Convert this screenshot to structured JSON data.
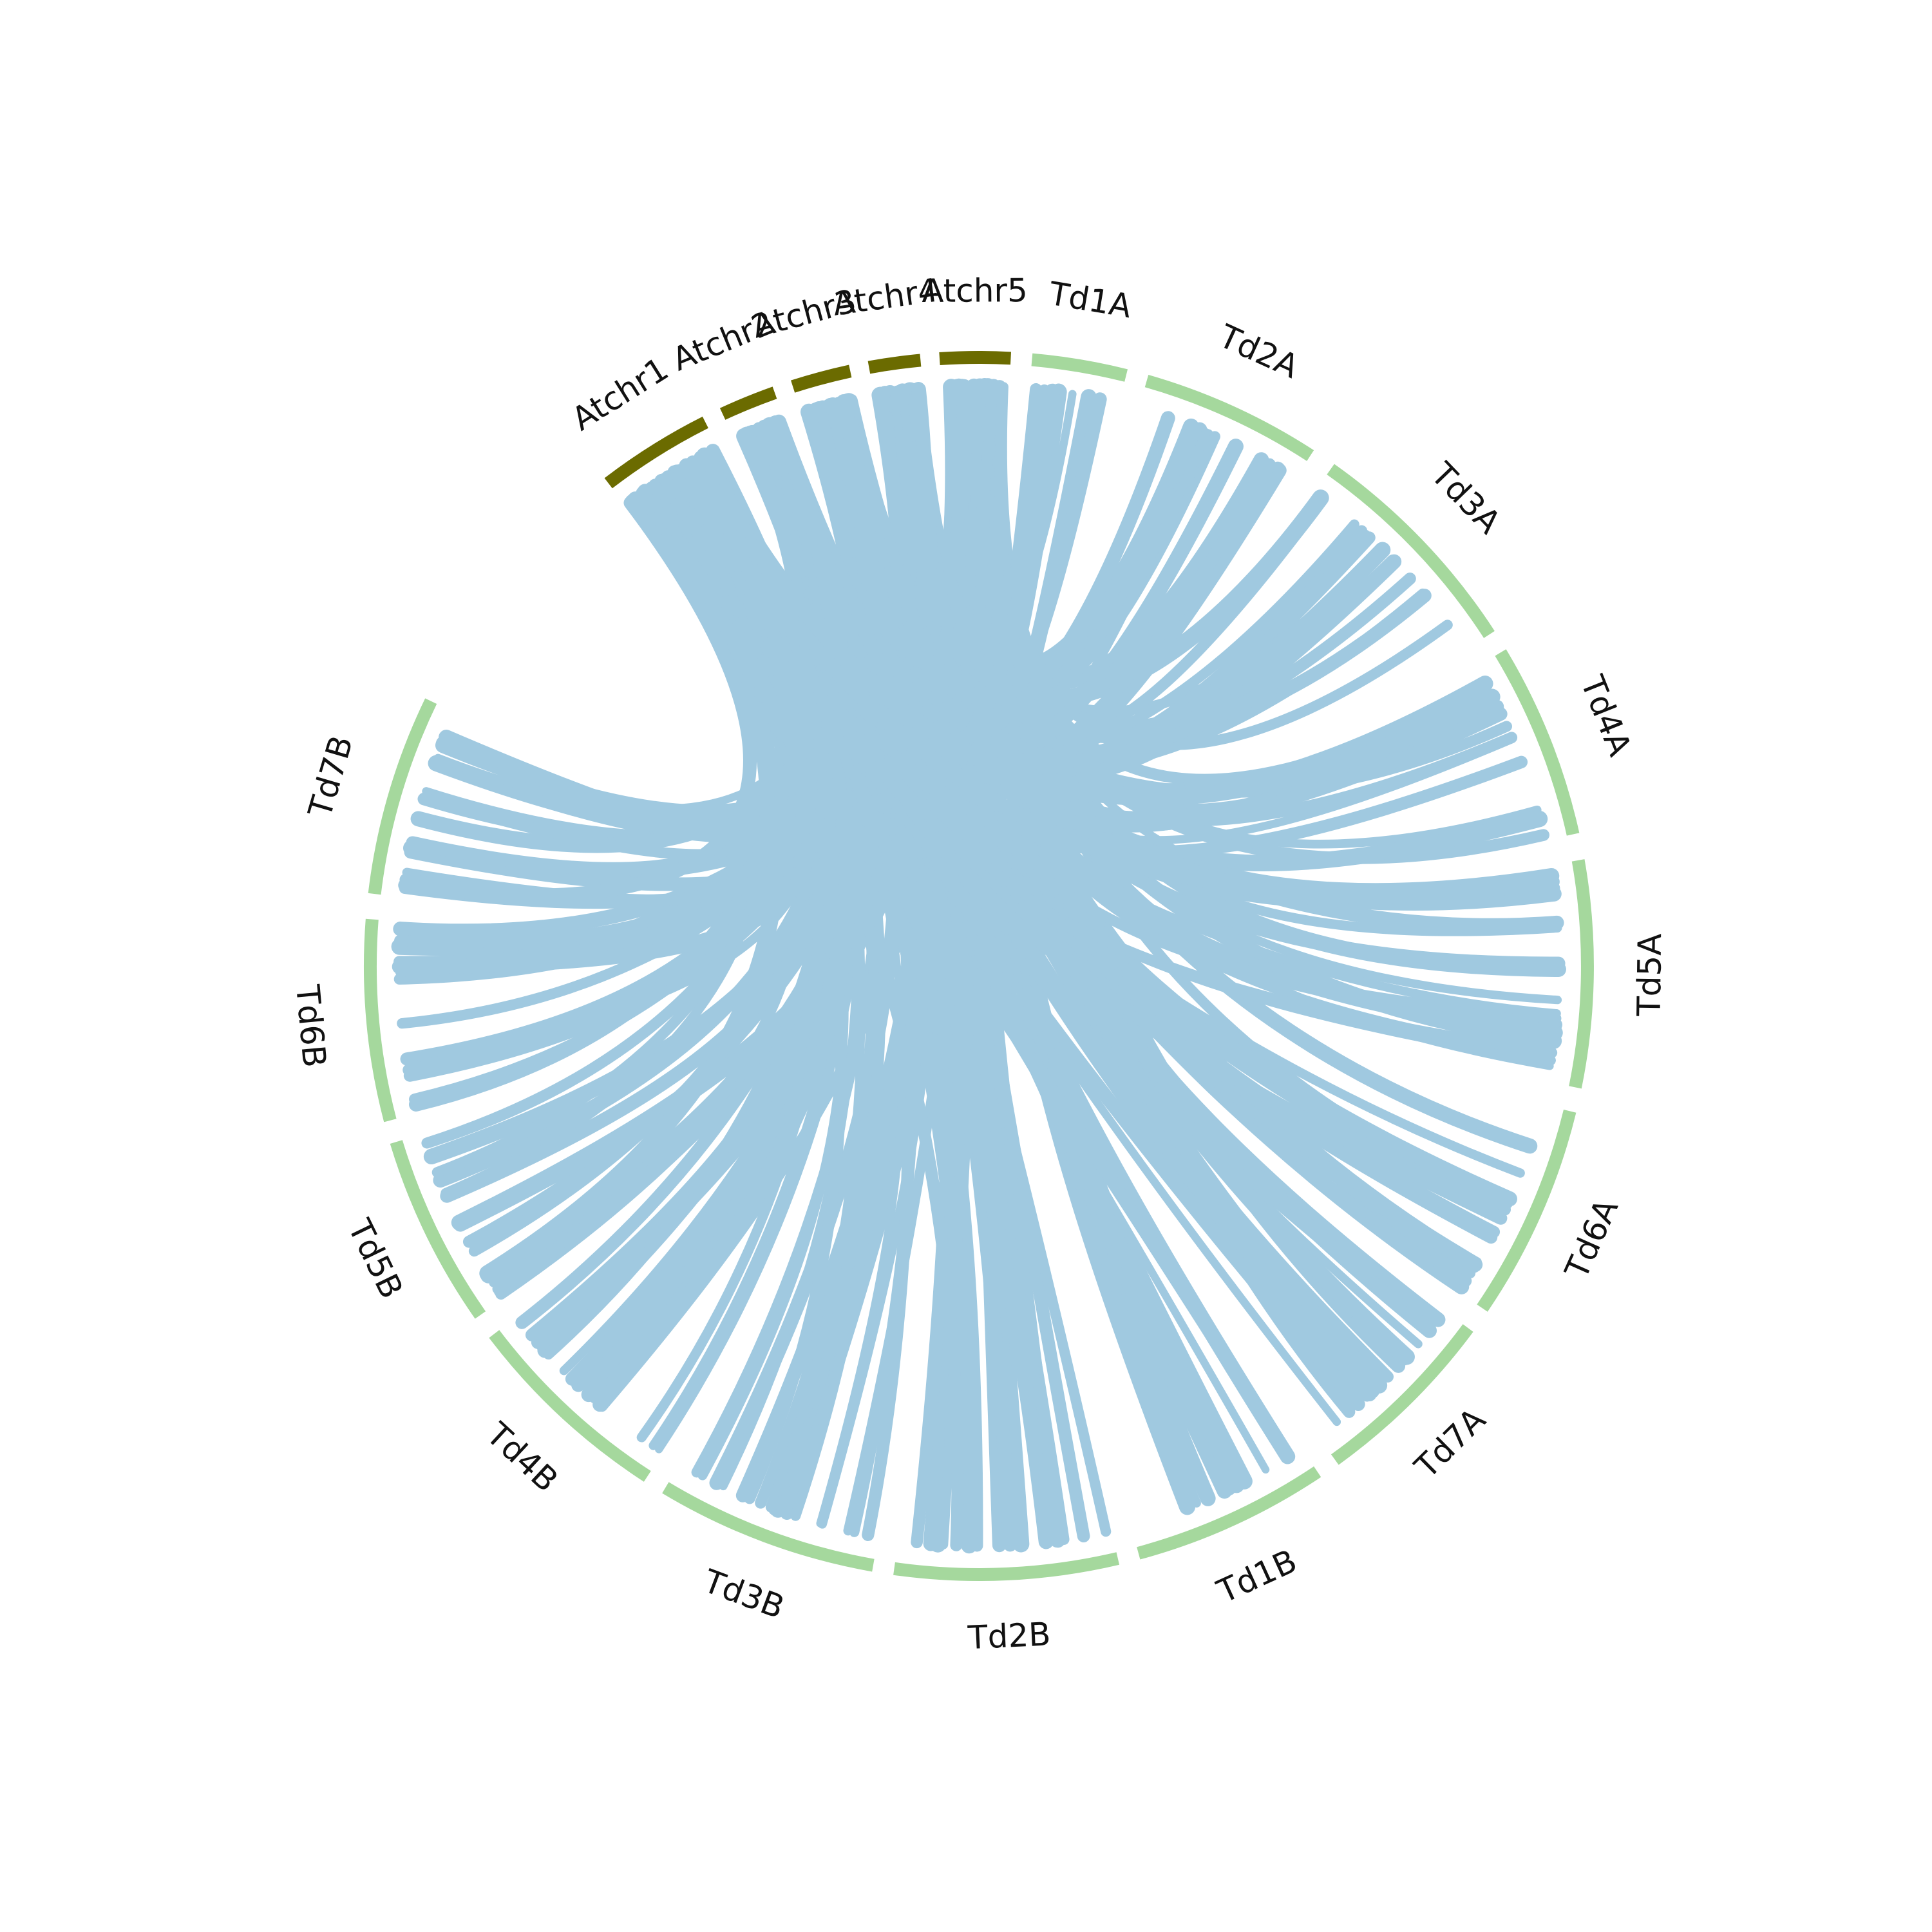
{
  "diagram": {
    "type": "circos",
    "colors": {
      "atchr": "#6b6b00",
      "td": "#a5d89d",
      "link": "#a0c9e0",
      "label": "#111111",
      "background": "#ffffff"
    },
    "chromosomes": [
      {
        "id": "Atchr1",
        "label": "Atchr1",
        "group": "atchr"
      },
      {
        "id": "Atchr2",
        "label": "Atchr2",
        "group": "atchr"
      },
      {
        "id": "Atchr3",
        "label": "Atchr3",
        "group": "atchr"
      },
      {
        "id": "Atchr4",
        "label": "Atchr4",
        "group": "atchr"
      },
      {
        "id": "Atchr5",
        "label": "Atchr5",
        "group": "atchr"
      },
      {
        "id": "Td1A",
        "label": "Td1A",
        "group": "td"
      },
      {
        "id": "Td2A",
        "label": "Td2A",
        "group": "td"
      },
      {
        "id": "Td3A",
        "label": "Td3A",
        "group": "td"
      },
      {
        "id": "Td4A",
        "label": "Td4A",
        "group": "td"
      },
      {
        "id": "Td5A",
        "label": "Td5A",
        "group": "td"
      },
      {
        "id": "Td6A",
        "label": "Td6A",
        "group": "td"
      },
      {
        "id": "Td7A",
        "label": "Td7A",
        "group": "td"
      },
      {
        "id": "Td1B",
        "label": "Td1B",
        "group": "td"
      },
      {
        "id": "Td2B",
        "label": "Td2B",
        "group": "td"
      },
      {
        "id": "Td3B",
        "label": "Td3B",
        "group": "td"
      },
      {
        "id": "Td4B",
        "label": "Td4B",
        "group": "td"
      },
      {
        "id": "Td5B",
        "label": "Td5B",
        "group": "td"
      },
      {
        "id": "Td6B",
        "label": "Td6B",
        "group": "td"
      },
      {
        "id": "Td7B",
        "label": "Td7B",
        "group": "td"
      }
    ],
    "links": [
      {
        "from": "Atchr5",
        "to": "Td1A",
        "count": 4
      },
      {
        "from": "Atchr5",
        "to": "Td2A",
        "count": 4
      },
      {
        "from": "Atchr5",
        "to": "Td3A",
        "count": 3
      },
      {
        "from": "Atchr5",
        "to": "Td4A",
        "count": 3
      },
      {
        "from": "Atchr5",
        "to": "Td5A",
        "count": 4
      },
      {
        "from": "Atchr5",
        "to": "Td6A",
        "count": 3
      },
      {
        "from": "Atchr5",
        "to": "Td7A",
        "count": 3
      },
      {
        "from": "Atchr5",
        "to": "Td1B",
        "count": 2
      },
      {
        "from": "Atchr5",
        "to": "Td2B",
        "count": 6
      },
      {
        "from": "Atchr5",
        "to": "Td3B",
        "count": 3
      },
      {
        "from": "Atchr5",
        "to": "Td4B",
        "count": 3
      },
      {
        "from": "Atchr5",
        "to": "Td5B",
        "count": 3
      },
      {
        "from": "Atchr5",
        "to": "Td6B",
        "count": 3
      },
      {
        "from": "Atchr5",
        "to": "Td7B",
        "count": 3
      },
      {
        "from": "Atchr4",
        "to": "Td1A",
        "count": 2
      },
      {
        "from": "Atchr4",
        "to": "Td2A",
        "count": 3
      },
      {
        "from": "Atchr4",
        "to": "Td3A",
        "count": 3
      },
      {
        "from": "Atchr4",
        "to": "Td4A",
        "count": 3
      },
      {
        "from": "Atchr4",
        "to": "Td5A",
        "count": 4
      },
      {
        "from": "Atchr4",
        "to": "Td6A",
        "count": 3
      },
      {
        "from": "Atchr4",
        "to": "Td7A",
        "count": 4
      },
      {
        "from": "Atchr4",
        "to": "Td1B",
        "count": 2
      },
      {
        "from": "Atchr4",
        "to": "Td2B",
        "count": 4
      },
      {
        "from": "Atchr4",
        "to": "Td3B",
        "count": 4
      },
      {
        "from": "Atchr4",
        "to": "Td4B",
        "count": 3
      },
      {
        "from": "Atchr4",
        "to": "Td5B",
        "count": 3
      },
      {
        "from": "Atchr4",
        "to": "Td6B",
        "count": 3
      },
      {
        "from": "Atchr4",
        "to": "Td7B",
        "count": 3
      },
      {
        "from": "Atchr3",
        "to": "Td1A",
        "count": 2
      },
      {
        "from": "Atchr3",
        "to": "Td2A",
        "count": 2
      },
      {
        "from": "Atchr3",
        "to": "Td3A",
        "count": 3
      },
      {
        "from": "Atchr3",
        "to": "Td4A",
        "count": 3
      },
      {
        "from": "Atchr3",
        "to": "Td5A",
        "count": 4
      },
      {
        "from": "Atchr3",
        "to": "Td6A",
        "count": 3
      },
      {
        "from": "Atchr3",
        "to": "Td7A",
        "count": 3
      },
      {
        "from": "Atchr3",
        "to": "Td1B",
        "count": 2
      },
      {
        "from": "Atchr3",
        "to": "Td2B",
        "count": 4
      },
      {
        "from": "Atchr3",
        "to": "Td3B",
        "count": 4
      },
      {
        "from": "Atchr3",
        "to": "Td4B",
        "count": 4
      },
      {
        "from": "Atchr3",
        "to": "Td5B",
        "count": 3
      },
      {
        "from": "Atchr3",
        "to": "Td6B",
        "count": 3
      },
      {
        "from": "Atchr3",
        "to": "Td7B",
        "count": 3
      },
      {
        "from": "Atchr2",
        "to": "Td1A",
        "count": 2
      },
      {
        "from": "Atchr2",
        "to": "Td2A",
        "count": 2
      },
      {
        "from": "Atchr2",
        "to": "Td3A",
        "count": 2
      },
      {
        "from": "Atchr2",
        "to": "Td4A",
        "count": 3
      },
      {
        "from": "Atchr2",
        "to": "Td5A",
        "count": 3
      },
      {
        "from": "Atchr2",
        "to": "Td6A",
        "count": 3
      },
      {
        "from": "Atchr2",
        "to": "Td7A",
        "count": 3
      },
      {
        "from": "Atchr2",
        "to": "Td1B",
        "count": 2
      },
      {
        "from": "Atchr2",
        "to": "Td2B",
        "count": 3
      },
      {
        "from": "Atchr2",
        "to": "Td3B",
        "count": 4
      },
      {
        "from": "Atchr2",
        "to": "Td4B",
        "count": 4
      },
      {
        "from": "Atchr2",
        "to": "Td5B",
        "count": 4
      },
      {
        "from": "Atchr2",
        "to": "Td6B",
        "count": 3
      },
      {
        "from": "Atchr2",
        "to": "Td7B",
        "count": 3
      },
      {
        "from": "Atchr1",
        "to": "Td1A",
        "count": 2
      },
      {
        "from": "Atchr1",
        "to": "Td2A",
        "count": 2
      },
      {
        "from": "Atchr1",
        "to": "Td3A",
        "count": 3
      },
      {
        "from": "Atchr1",
        "to": "Td4A",
        "count": 3
      },
      {
        "from": "Atchr1",
        "to": "Td5A",
        "count": 4
      },
      {
        "from": "Atchr1",
        "to": "Td6A",
        "count": 3
      },
      {
        "from": "Atchr1",
        "to": "Td7A",
        "count": 3
      },
      {
        "from": "Atchr1",
        "to": "Td1B",
        "count": 2
      },
      {
        "from": "Atchr1",
        "to": "Td2B",
        "count": 3
      },
      {
        "from": "Atchr1",
        "to": "Td3B",
        "count": 4
      },
      {
        "from": "Atchr1",
        "to": "Td4B",
        "count": 4
      },
      {
        "from": "Atchr1",
        "to": "Td5B",
        "count": 5
      },
      {
        "from": "Atchr1",
        "to": "Td6B",
        "count": 5
      },
      {
        "from": "Atchr1",
        "to": "Td7B",
        "count": 6
      }
    ]
  }
}
